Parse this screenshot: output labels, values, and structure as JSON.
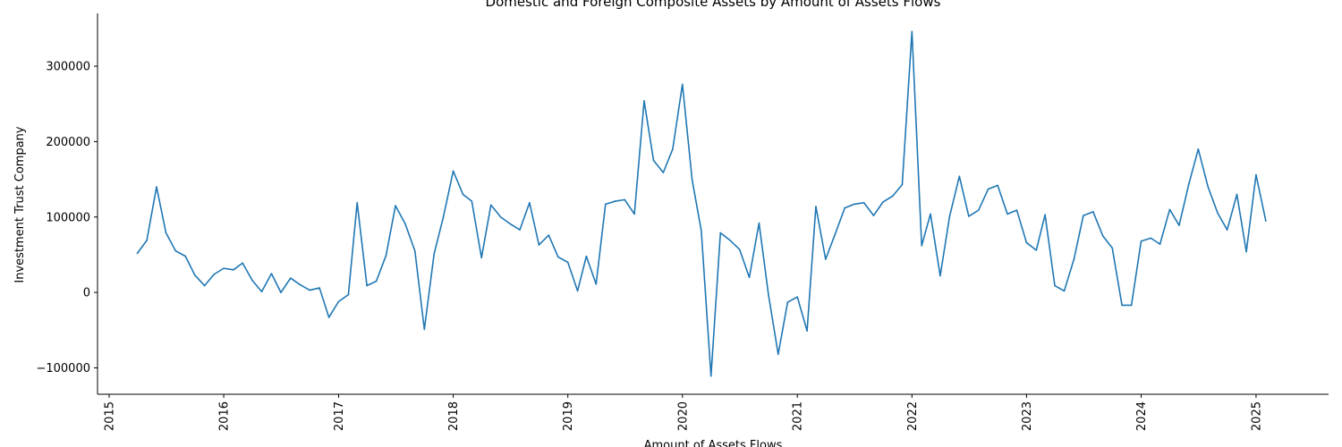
{
  "chart_data": {
    "type": "line",
    "title": "Domestic and Foreign Composite Assets by Amount of Assets Flows",
    "xlabel": "Amount of Assets Flows",
    "ylabel": "Investment Trust Company",
    "xlim": [
      "2014-11-25",
      "2025-08-20"
    ],
    "ylim": [
      -135000,
      370000
    ],
    "x_ticks": [
      "2015",
      "2016",
      "2017",
      "2018",
      "2019",
      "2020",
      "2021",
      "2022",
      "2023",
      "2024",
      "2025"
    ],
    "y_ticks": [
      -100000,
      0,
      100000,
      200000,
      300000
    ],
    "y_tick_labels": [
      "−100000",
      "0",
      "100000",
      "200000",
      "300000"
    ],
    "grid": false,
    "color": "#1f77b4",
    "series": [
      {
        "x": [
          "2015-04",
          "2015-05",
          "2015-06",
          "2015-07",
          "2015-08",
          "2015-09",
          "2015-10",
          "2015-11",
          "2015-12",
          "2016-01",
          "2016-02",
          "2016-03",
          "2016-04",
          "2016-05",
          "2016-06",
          "2016-07",
          "2016-08",
          "2016-09",
          "2016-10",
          "2016-11",
          "2016-12",
          "2017-01",
          "2017-02",
          "2017-03",
          "2017-04",
          "2017-05",
          "2017-06",
          "2017-07",
          "2017-08",
          "2017-09",
          "2017-10",
          "2017-11",
          "2017-12",
          "2018-01",
          "2018-02",
          "2018-03",
          "2018-04",
          "2018-05",
          "2018-06",
          "2018-07",
          "2018-08",
          "2018-09",
          "2018-10",
          "2018-11",
          "2018-12",
          "2019-01",
          "2019-02",
          "2019-03",
          "2019-04",
          "2019-05",
          "2019-06",
          "2019-07",
          "2019-08",
          "2019-09",
          "2019-10",
          "2019-11",
          "2019-12",
          "2020-01",
          "2020-02",
          "2020-03",
          "2020-04",
          "2020-05",
          "2020-06",
          "2020-07",
          "2020-08",
          "2020-09",
          "2020-10",
          "2020-11",
          "2020-12",
          "2021-01",
          "2021-02",
          "2021-03",
          "2021-04",
          "2021-05",
          "2021-06",
          "2021-07",
          "2021-08",
          "2021-09",
          "2021-10",
          "2021-11",
          "2021-12",
          "2022-01",
          "2022-02",
          "2022-03",
          "2022-04",
          "2022-05",
          "2022-06",
          "2022-07",
          "2022-08",
          "2022-09",
          "2022-10",
          "2022-11",
          "2022-12",
          "2023-01",
          "2023-02",
          "2023-03",
          "2023-04",
          "2023-05",
          "2023-06",
          "2023-07",
          "2023-08",
          "2023-09",
          "2023-10",
          "2023-11",
          "2023-12",
          "2024-01",
          "2024-02",
          "2024-03",
          "2024-04",
          "2024-05",
          "2024-06",
          "2024-07",
          "2024-08",
          "2024-09",
          "2024-10",
          "2024-11",
          "2024-12",
          "2025-01",
          "2025-02"
        ],
        "values": [
          52000,
          69000,
          140000,
          79000,
          55000,
          48000,
          23000,
          9000,
          24000,
          32000,
          30000,
          39000,
          16000,
          1000,
          25000,
          0,
          19000,
          10000,
          3000,
          6000,
          -33000,
          -12000,
          -3000,
          119000,
          9000,
          15000,
          49000,
          115000,
          91000,
          55000,
          -49000,
          51000,
          101000,
          161000,
          130000,
          121000,
          46000,
          116000,
          100000,
          91000,
          83000,
          119000,
          63000,
          76000,
          47000,
          40000,
          2000,
          48000,
          11000,
          117000,
          121000,
          123000,
          104000,
          254000,
          175000,
          159000,
          190000,
          276000,
          149000,
          82000,
          -111000,
          79000,
          69000,
          57000,
          20000,
          92000,
          -3000,
          -82000,
          -13000,
          -6000,
          -51000,
          114000,
          44000,
          77000,
          112000,
          117000,
          119000,
          102000,
          120000,
          128000,
          143000,
          346000,
          62000,
          104000,
          22000,
          101000,
          154000,
          101000,
          109000,
          137000,
          142000,
          104000,
          109000,
          66000,
          56000,
          103000,
          9000,
          2000,
          44000,
          102000,
          107000,
          75000,
          59000,
          -17000,
          -17000,
          68000,
          72000,
          64000,
          110000,
          89000,
          144000,
          190000,
          140000,
          105000,
          83000,
          130000,
          54000,
          156000,
          95000
        ]
      }
    ]
  }
}
